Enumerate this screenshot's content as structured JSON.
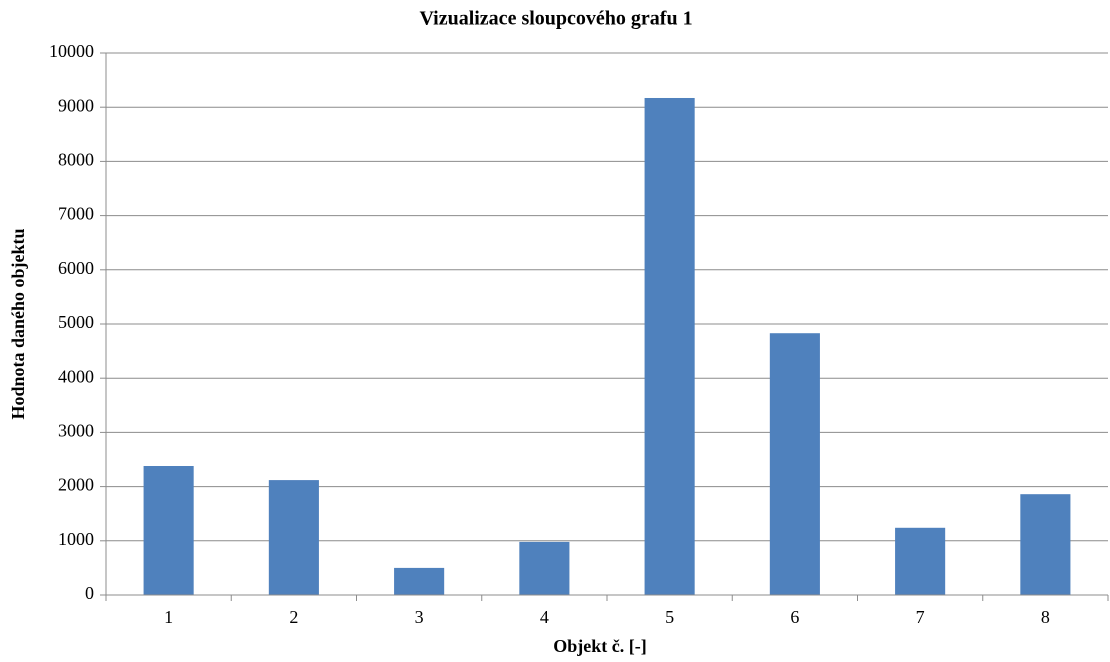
{
  "chart_data": {
    "type": "bar",
    "title": "Vizualizace sloupcového grafu 1",
    "x_label": "Objekt č. [-]",
    "y_label": "Hodnota daného objektu",
    "categories": [
      "1",
      "2",
      "3",
      "4",
      "5",
      "6",
      "7",
      "8"
    ],
    "values": [
      2380,
      2120,
      500,
      980,
      9170,
      4830,
      1240,
      1860
    ],
    "color": "#4f81bd",
    "ylim": [
      0,
      10000
    ],
    "yticks": [
      0,
      1000,
      2000,
      3000,
      4000,
      5000,
      6000,
      7000,
      8000,
      9000,
      10000
    ],
    "grid": true
  }
}
